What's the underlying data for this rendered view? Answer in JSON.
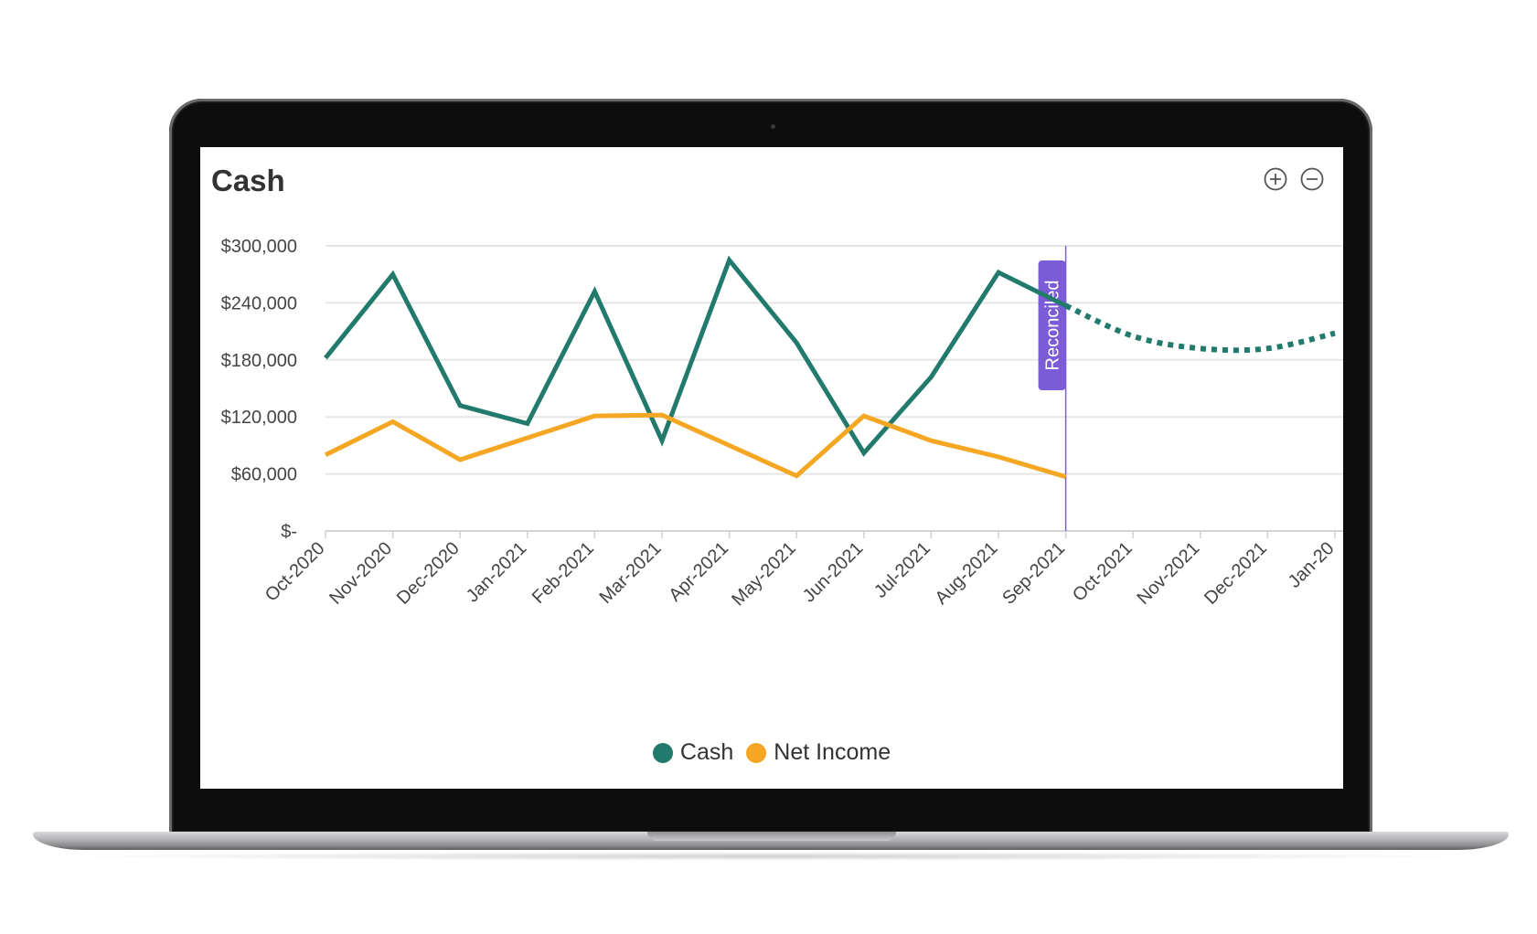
{
  "chart_data": {
    "type": "line",
    "title": "Cash",
    "categories": [
      "Oct-2020",
      "Nov-2020",
      "Dec-2020",
      "Jan-2021",
      "Feb-2021",
      "Mar-2021",
      "Apr-2021",
      "May-2021",
      "Jun-2021",
      "Jul-2021",
      "Aug-2021",
      "Sep-2021",
      "Oct-2021",
      "Nov-2021",
      "Dec-2021",
      "Jan-20"
    ],
    "y_ticks": [
      "$-",
      "$60,000",
      "$120,000",
      "$180,000",
      "$240,000",
      "$300,000"
    ],
    "ylim": [
      0,
      300000
    ],
    "grid": true,
    "legend_position": "bottom",
    "series": [
      {
        "name": "Cash",
        "color": "#217a6b",
        "values": [
          182000,
          270000,
          132000,
          113000,
          252000,
          95000,
          285000,
          198000,
          82000,
          162000,
          272000,
          237000,
          null,
          null,
          null,
          null
        ],
        "forecast_values": [
          null,
          null,
          null,
          null,
          null,
          null,
          null,
          null,
          null,
          null,
          null,
          237000,
          205000,
          192000,
          192000,
          208000
        ]
      },
      {
        "name": "Net Income",
        "color": "#f5a623",
        "values": [
          80000,
          115000,
          75000,
          98000,
          121000,
          122000,
          90000,
          58000,
          121000,
          95000,
          78000,
          57000,
          null,
          null,
          null,
          null
        ]
      }
    ],
    "annotations": [
      {
        "label": "Reconciled",
        "at_category": "Sep-2021",
        "color": "#7b5cd6"
      }
    ]
  },
  "controls": {
    "zoom_in_icon": "plus-circle-icon",
    "zoom_out_icon": "minus-circle-icon"
  }
}
